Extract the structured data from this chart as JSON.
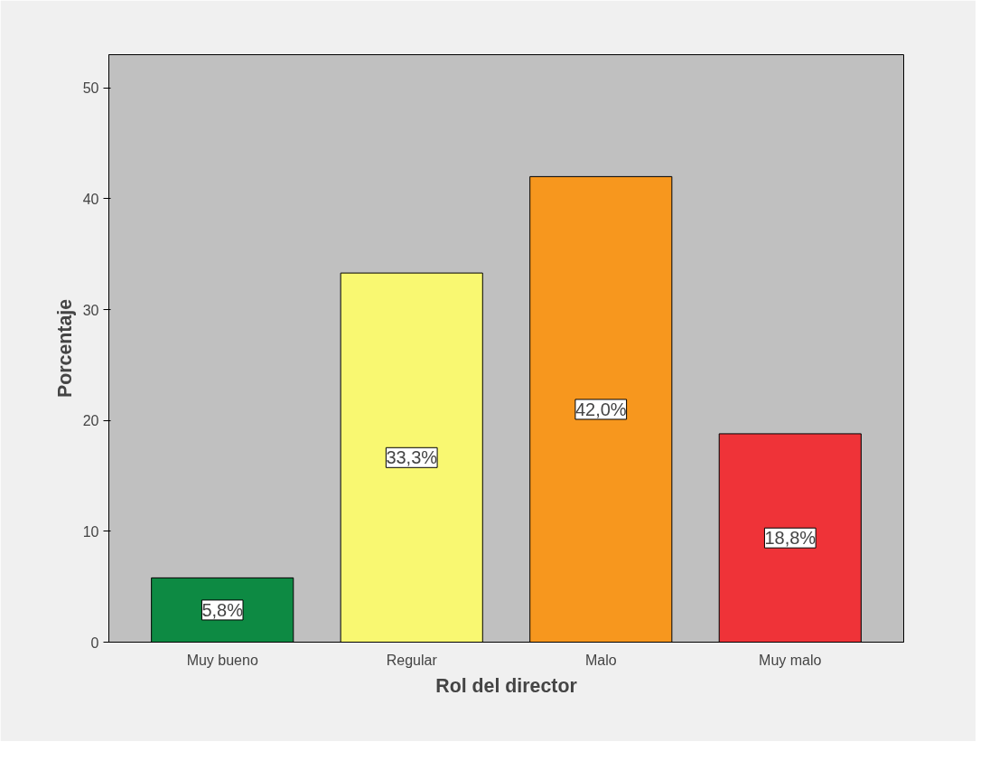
{
  "chart_data": {
    "type": "bar",
    "xlabel": "Rol del director",
    "ylabel": "Porcentaje",
    "categories": [
      "Muy bueno",
      "Regular",
      "Malo",
      "Muy malo"
    ],
    "values": [
      5.8,
      33.3,
      42.0,
      18.8
    ],
    "colors": [
      "#0d8a43",
      "#f9f871",
      "#f7971e",
      "#ef3338"
    ],
    "value_labels": [
      "5,8%",
      "33,3%",
      "42,0%",
      "18,8%"
    ],
    "ylim": [
      0,
      53
    ],
    "yticks": [
      0,
      10,
      20,
      30,
      40,
      50
    ],
    "grid": false
  }
}
